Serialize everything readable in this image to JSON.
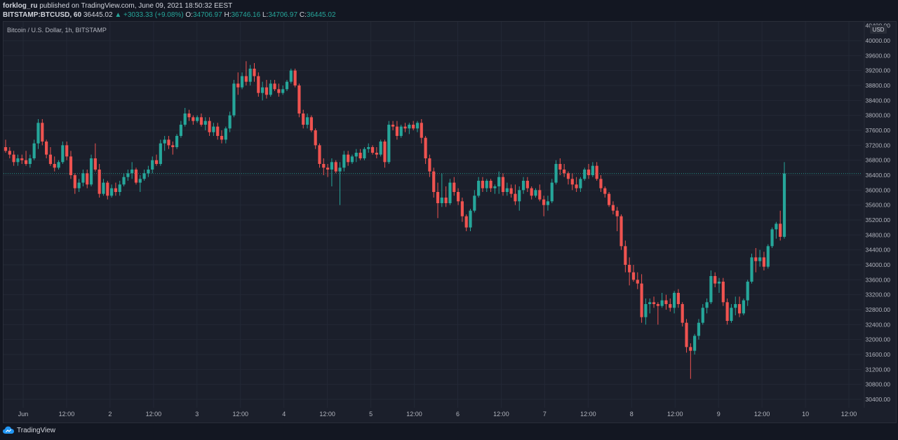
{
  "header": {
    "author": "forklog_ru",
    "published_text": "published on TradingView.com, June 09, 2021 18:50:32 EEST",
    "symbol": "BITSTAMP:BTCUSD, 60",
    "last_price": "36445.02",
    "change": "▲ +3033.33 (+9.08%)",
    "o_label": "O:",
    "o_value": "34706.97",
    "h_label": "H:",
    "h_value": "36746.16",
    "l_label": "L:",
    "l_value": "34706.97",
    "c_label": "C:",
    "c_value": "36445.02"
  },
  "footer": {
    "brand": "TradingView"
  },
  "colors": {
    "up": "#26a69a",
    "down": "#ef5350",
    "background": "#131722",
    "pane": "#1b1f2b",
    "grid": "#232836",
    "text": "#b2b5be"
  },
  "chart_data": {
    "type": "candlestick",
    "title": "Bitcoin / U.S. Dollar, 1h, BITSTAMP",
    "currency_label": "USD",
    "ylim": [
      30200,
      40200
    ],
    "y_ticks": [
      40000,
      39600,
      39200,
      38800,
      38400,
      38000,
      37600,
      37200,
      36800,
      36400,
      36000,
      35600,
      35200,
      34800,
      34400,
      34000,
      33600,
      33200,
      32800,
      32400,
      32000,
      31600,
      31200,
      30800,
      30400
    ],
    "y_tick_labels": [
      "40000.00",
      "39600.00",
      "39200.00",
      "38800.00",
      "38400.00",
      "38000.00",
      "37600.00",
      "37200.00",
      "36800.00",
      "36400.00",
      "36000.00",
      "35600.00",
      "35200.00",
      "34800.00",
      "34400.00",
      "34000.00",
      "33600.00",
      "33200.00",
      "32800.00",
      "32400.00",
      "32000.00",
      "31600.00",
      "31200.00",
      "30800.00",
      "30400.00"
    ],
    "y_tick_top_partial": "40400.00",
    "x_tick_labels": [
      "Jun",
      "12:00",
      "2",
      "12:00",
      "3",
      "12:00",
      "4",
      "12:00",
      "5",
      "12:00",
      "6",
      "12:00",
      "7",
      "12:00",
      "8",
      "12:00",
      "9",
      "12:00",
      "10",
      "12:00"
    ],
    "current_price": 36445.02,
    "candles": [
      [
        37150,
        37350,
        37000,
        37050
      ],
      [
        37050,
        37150,
        36850,
        36950
      ],
      [
        36950,
        37050,
        36650,
        36750
      ],
      [
        36750,
        36950,
        36650,
        36850
      ],
      [
        36850,
        36950,
        36700,
        36800
      ],
      [
        36800,
        37050,
        36650,
        36700
      ],
      [
        36700,
        36950,
        36600,
        36850
      ],
      [
        36850,
        37350,
        36800,
        37250
      ],
      [
        37250,
        37900,
        37100,
        37800
      ],
      [
        37800,
        37900,
        37200,
        37300
      ],
      [
        37300,
        37350,
        36850,
        36950
      ],
      [
        36950,
        37150,
        36650,
        36700
      ],
      [
        36700,
        36900,
        36500,
        36600
      ],
      [
        36600,
        36800,
        36550,
        36750
      ],
      [
        36750,
        37300,
        36700,
        37200
      ],
      [
        37200,
        37300,
        36800,
        36900
      ],
      [
        36900,
        37050,
        36300,
        36400
      ],
      [
        36400,
        36450,
        35900,
        36050
      ],
      [
        36050,
        36300,
        35950,
        36200
      ],
      [
        36200,
        36550,
        36100,
        36450
      ],
      [
        36450,
        36550,
        36050,
        36150
      ],
      [
        36150,
        36950,
        36100,
        36850
      ],
      [
        36850,
        37250,
        36500,
        36550
      ],
      [
        36550,
        36700,
        35800,
        35900
      ],
      [
        35900,
        36300,
        35850,
        36200
      ],
      [
        36200,
        36250,
        35750,
        35850
      ],
      [
        35850,
        36150,
        35800,
        36050
      ],
      [
        36050,
        36200,
        35850,
        35950
      ],
      [
        35950,
        36250,
        35850,
        36150
      ],
      [
        36150,
        36450,
        36100,
        36350
      ],
      [
        36350,
        36550,
        36250,
        36450
      ],
      [
        36450,
        36750,
        36300,
        36550
      ],
      [
        36550,
        36600,
        36150,
        36200
      ],
      [
        36200,
        36400,
        35950,
        36300
      ],
      [
        36300,
        36550,
        36250,
        36450
      ],
      [
        36450,
        36650,
        36350,
        36550
      ],
      [
        36550,
        36900,
        36450,
        36800
      ],
      [
        36800,
        36950,
        36650,
        36700
      ],
      [
        36700,
        37350,
        36650,
        37250
      ],
      [
        37250,
        37450,
        37050,
        37350
      ],
      [
        37350,
        37450,
        37100,
        37200
      ],
      [
        37200,
        37300,
        36950,
        37150
      ],
      [
        37150,
        37500,
        37100,
        37450
      ],
      [
        37450,
        37850,
        37400,
        37750
      ],
      [
        37750,
        38200,
        37700,
        38050
      ],
      [
        38050,
        38150,
        37850,
        37950
      ],
      [
        37950,
        38000,
        37750,
        37850
      ],
      [
        37850,
        38000,
        37800,
        37950
      ],
      [
        37950,
        38050,
        37700,
        37750
      ],
      [
        37750,
        37950,
        37600,
        37850
      ],
      [
        37850,
        37950,
        37450,
        37550
      ],
      [
        37550,
        37800,
        37450,
        37700
      ],
      [
        37700,
        37800,
        37350,
        37450
      ],
      [
        37450,
        37600,
        37250,
        37350
      ],
      [
        37350,
        37700,
        37250,
        37650
      ],
      [
        37650,
        38100,
        37550,
        38000
      ],
      [
        38000,
        38950,
        37950,
        38850
      ],
      [
        38850,
        39150,
        38550,
        38750
      ],
      [
        38750,
        39150,
        38700,
        39050
      ],
      [
        39050,
        39450,
        38800,
        38900
      ],
      [
        38900,
        39350,
        38800,
        39250
      ],
      [
        39250,
        39400,
        38900,
        39050
      ],
      [
        39050,
        39150,
        38500,
        38600
      ],
      [
        38600,
        38900,
        38400,
        38750
      ],
      [
        38750,
        38950,
        38450,
        38550
      ],
      [
        38550,
        38950,
        38500,
        38850
      ],
      [
        38850,
        38950,
        38650,
        38700
      ],
      [
        38700,
        38850,
        38500,
        38600
      ],
      [
        38600,
        38800,
        38550,
        38700
      ],
      [
        38700,
        38950,
        38650,
        38900
      ],
      [
        38900,
        39250,
        38850,
        39200
      ],
      [
        39200,
        39250,
        38750,
        38800
      ],
      [
        38800,
        38850,
        37950,
        38050
      ],
      [
        38050,
        38150,
        37650,
        37750
      ],
      [
        37750,
        38050,
        37650,
        37950
      ],
      [
        37950,
        38000,
        37550,
        37600
      ],
      [
        37600,
        37650,
        37100,
        37200
      ],
      [
        37200,
        37250,
        36600,
        36700
      ],
      [
        36700,
        36850,
        36400,
        36600
      ],
      [
        36600,
        36700,
        36350,
        36550
      ],
      [
        36550,
        36850,
        36100,
        36750
      ],
      [
        36750,
        36800,
        36450,
        36500
      ],
      [
        36500,
        36750,
        35600,
        36600
      ],
      [
        36600,
        37050,
        36500,
        36950
      ],
      [
        36950,
        37050,
        36650,
        36750
      ],
      [
        36750,
        36950,
        36700,
        36900
      ],
      [
        36900,
        37100,
        36750,
        37000
      ],
      [
        37000,
        37100,
        36800,
        36850
      ],
      [
        36850,
        37150,
        36800,
        37100
      ],
      [
        37100,
        37250,
        37000,
        37150
      ],
      [
        37150,
        37200,
        36950,
        37000
      ],
      [
        37000,
        37150,
        36850,
        36950
      ],
      [
        36950,
        37350,
        36900,
        37300
      ],
      [
        37300,
        37350,
        36600,
        36750
      ],
      [
        36750,
        37850,
        36700,
        37750
      ],
      [
        37750,
        37850,
        37600,
        37700
      ],
      [
        37700,
        37850,
        37350,
        37450
      ],
      [
        37450,
        37750,
        37400,
        37700
      ],
      [
        37700,
        37800,
        37550,
        37650
      ],
      [
        37650,
        37800,
        37500,
        37750
      ],
      [
        37750,
        37850,
        37600,
        37650
      ],
      [
        37650,
        37850,
        37550,
        37800
      ],
      [
        37800,
        37900,
        37250,
        37400
      ],
      [
        37400,
        37450,
        36700,
        36850
      ],
      [
        36850,
        36950,
        36350,
        36500
      ],
      [
        36500,
        36600,
        35800,
        35950
      ],
      [
        35950,
        36200,
        35250,
        35650
      ],
      [
        35650,
        36450,
        35550,
        35800
      ],
      [
        35800,
        36100,
        35550,
        35650
      ],
      [
        35650,
        36300,
        35600,
        36200
      ],
      [
        36200,
        36350,
        35850,
        35950
      ],
      [
        35950,
        36050,
        35600,
        35700
      ],
      [
        35700,
        35800,
        35150,
        35300
      ],
      [
        35300,
        35350,
        34900,
        35000
      ],
      [
        35000,
        35500,
        34900,
        35450
      ],
      [
        35450,
        36000,
        35400,
        35850
      ],
      [
        35850,
        36350,
        35800,
        36250
      ],
      [
        36250,
        36350,
        35950,
        36050
      ],
      [
        36050,
        36300,
        35950,
        36250
      ],
      [
        36250,
        36300,
        35950,
        36050
      ],
      [
        36050,
        36150,
        35900,
        36100
      ],
      [
        36100,
        36500,
        35900,
        36350
      ],
      [
        36350,
        36450,
        35850,
        35950
      ],
      [
        35950,
        36200,
        35850,
        36050
      ],
      [
        36050,
        36150,
        35800,
        35900
      ],
      [
        35900,
        36150,
        35600,
        35700
      ],
      [
        35700,
        36100,
        35450,
        36000
      ],
      [
        36000,
        36350,
        35900,
        36250
      ],
      [
        36250,
        36350,
        35950,
        36050
      ],
      [
        36050,
        36100,
        35750,
        35850
      ],
      [
        35850,
        36050,
        35800,
        36000
      ],
      [
        36000,
        36150,
        35700,
        35750
      ],
      [
        35750,
        35850,
        35300,
        35600
      ],
      [
        35600,
        35850,
        35450,
        35700
      ],
      [
        35700,
        36300,
        35650,
        36200
      ],
      [
        36200,
        36800,
        36150,
        36700
      ],
      [
        36700,
        36850,
        36400,
        36550
      ],
      [
        36550,
        36700,
        36350,
        36450
      ],
      [
        36450,
        36500,
        36150,
        36300
      ],
      [
        36300,
        36450,
        36000,
        36150
      ],
      [
        36150,
        36350,
        35950,
        36050
      ],
      [
        36050,
        36350,
        35950,
        36300
      ],
      [
        36300,
        36600,
        36250,
        36550
      ],
      [
        36550,
        36700,
        36300,
        36400
      ],
      [
        36400,
        36750,
        36350,
        36650
      ],
      [
        36650,
        36750,
        36250,
        36300
      ],
      [
        36300,
        36400,
        35950,
        36050
      ],
      [
        36050,
        36100,
        35800,
        35900
      ],
      [
        35900,
        35950,
        35550,
        35600
      ],
      [
        35600,
        35700,
        35350,
        35450
      ],
      [
        35450,
        35550,
        34900,
        35300
      ],
      [
        35300,
        35350,
        34400,
        34500
      ],
      [
        34500,
        34650,
        33800,
        34000
      ],
      [
        34000,
        34200,
        33450,
        33800
      ],
      [
        33800,
        34000,
        33550,
        33600
      ],
      [
        33600,
        33800,
        33350,
        33500
      ],
      [
        33500,
        33750,
        32450,
        32600
      ],
      [
        32600,
        33100,
        32400,
        32950
      ],
      [
        32950,
        33100,
        32700,
        33000
      ],
      [
        33000,
        33150,
        32850,
        32950
      ],
      [
        32950,
        33000,
        32400,
        32900
      ],
      [
        32900,
        33250,
        32850,
        33050
      ],
      [
        33050,
        33200,
        32800,
        32950
      ],
      [
        32950,
        33100,
        32750,
        32850
      ],
      [
        32850,
        33300,
        32700,
        33250
      ],
      [
        33250,
        33350,
        32850,
        32950
      ],
      [
        32950,
        33000,
        32350,
        32450
      ],
      [
        32450,
        32550,
        31650,
        31800
      ],
      [
        31800,
        31900,
        30950,
        31700
      ],
      [
        31700,
        32150,
        31600,
        32100
      ],
      [
        32100,
        32550,
        32000,
        32450
      ],
      [
        32450,
        32950,
        32400,
        32850
      ],
      [
        32850,
        33100,
        32700,
        33000
      ],
      [
        33000,
        33850,
        32950,
        33700
      ],
      [
        33700,
        33800,
        33400,
        33500
      ],
      [
        33500,
        33650,
        33250,
        33550
      ],
      [
        33550,
        33650,
        32900,
        33000
      ],
      [
        33000,
        33100,
        32400,
        32500
      ],
      [
        32500,
        32950,
        32450,
        32850
      ],
      [
        32850,
        33150,
        32650,
        32950
      ],
      [
        32950,
        33150,
        32600,
        32700
      ],
      [
        32700,
        33100,
        32650,
        33050
      ],
      [
        33050,
        33600,
        32900,
        33550
      ],
      [
        33550,
        34300,
        33500,
        34200
      ],
      [
        34200,
        34450,
        33800,
        34100
      ],
      [
        34100,
        34400,
        33950,
        34200
      ],
      [
        34200,
        34350,
        33850,
        33950
      ],
      [
        33950,
        34550,
        33900,
        34500
      ],
      [
        34500,
        35000,
        34450,
        34950
      ],
      [
        34950,
        35150,
        34700,
        35100
      ],
      [
        35100,
        35450,
        34650,
        34750
      ],
      [
        34750,
        36750,
        34700,
        36445
      ]
    ]
  }
}
